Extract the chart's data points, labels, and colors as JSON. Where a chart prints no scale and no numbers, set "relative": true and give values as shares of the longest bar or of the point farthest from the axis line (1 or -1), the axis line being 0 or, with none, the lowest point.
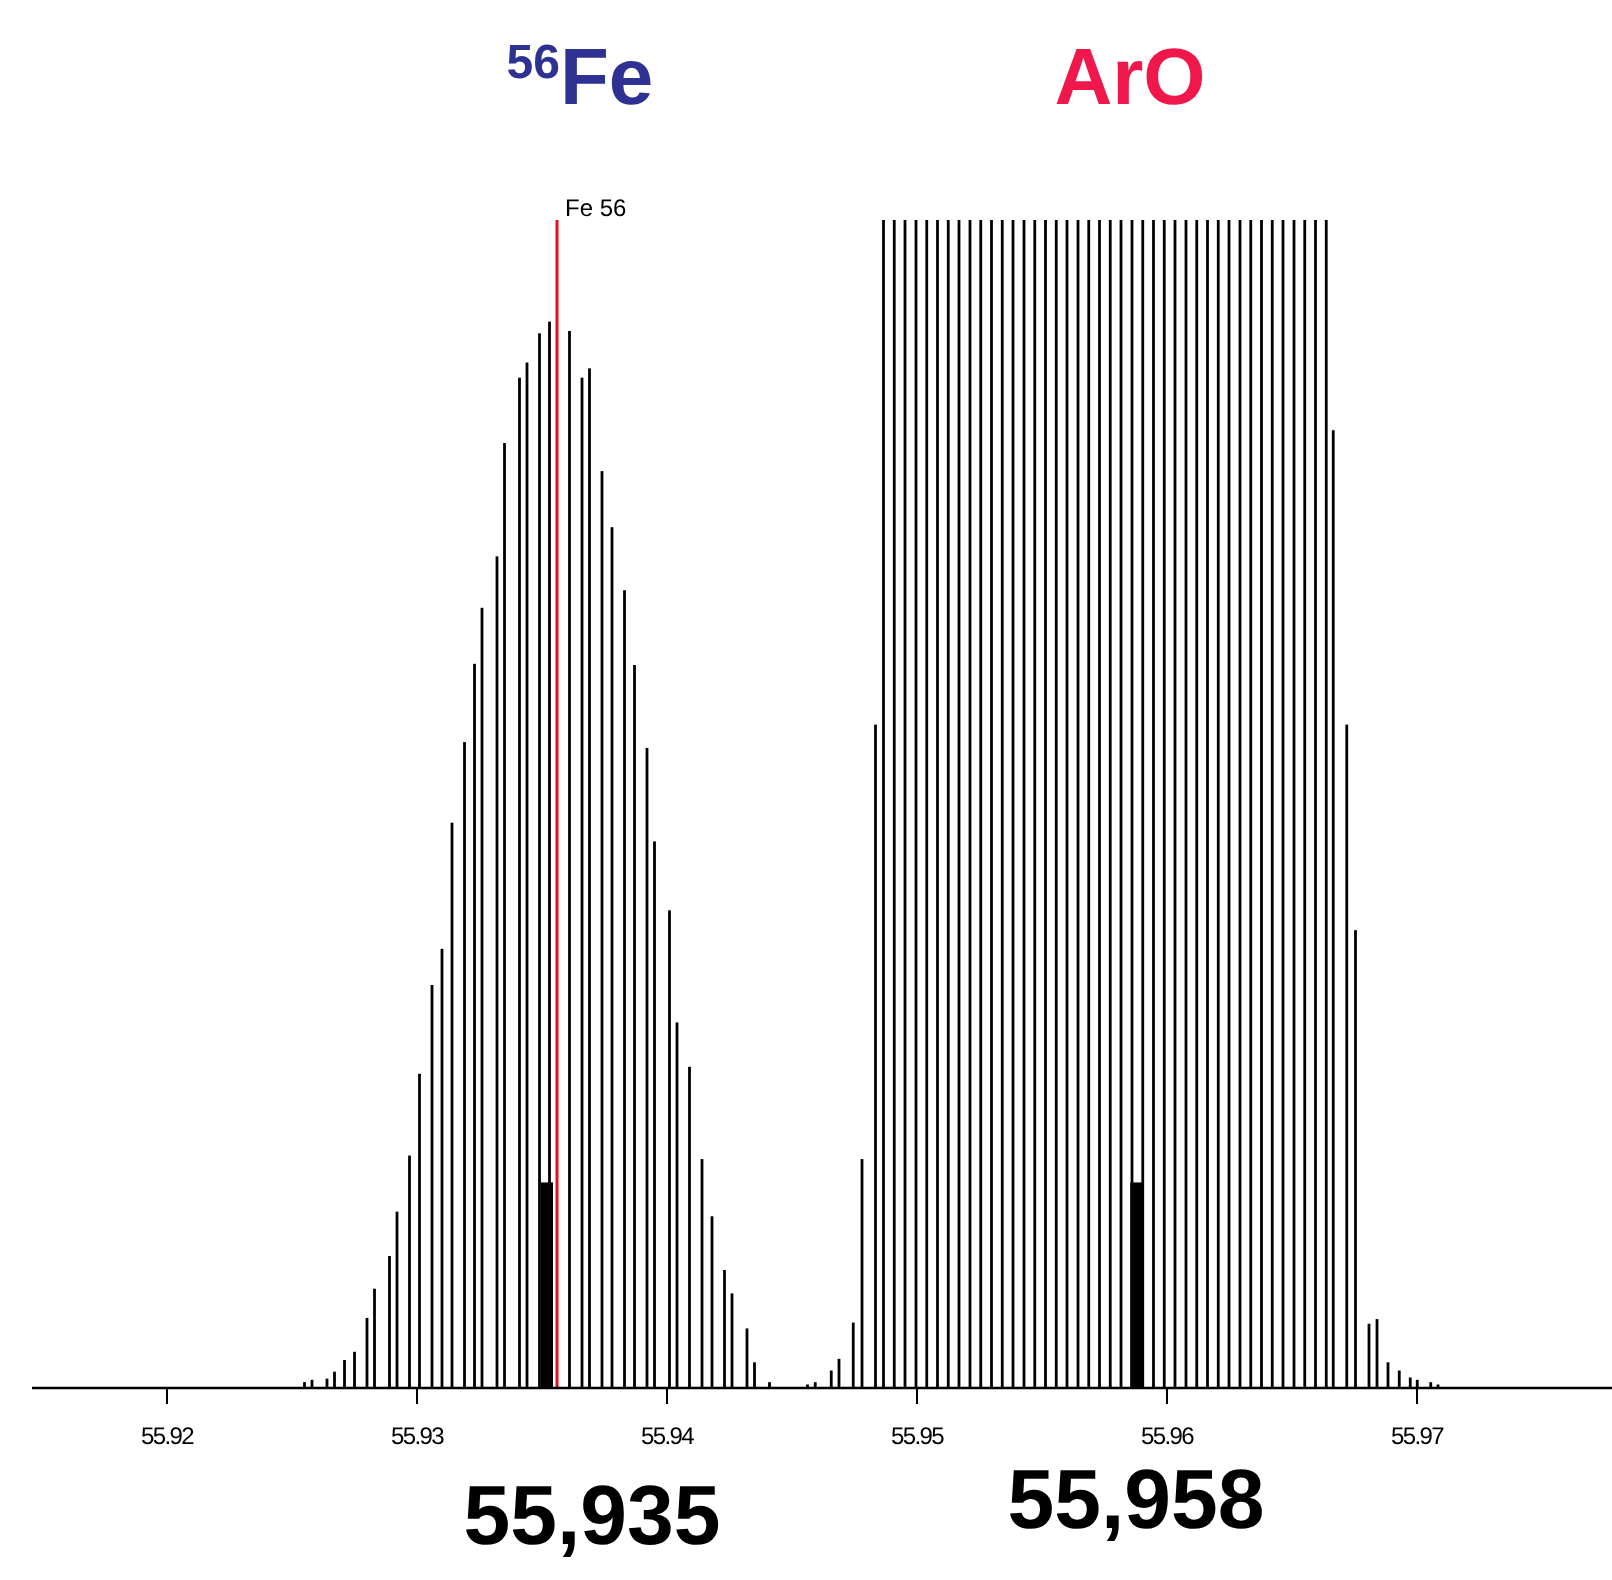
{
  "chart_data": {
    "type": "bar",
    "relative": true,
    "tick_labels": "x",
    "grid": false,
    "xlim": [
      55.9146,
      55.9778
    ],
    "xticks": [
      55.92,
      55.93,
      55.94,
      55.95,
      55.96,
      55.97
    ],
    "series": [
      {
        "color": "#000000",
        "x": [
          55.9255,
          55.9258,
          55.9264,
          55.9267,
          55.9271,
          55.9275,
          55.928,
          55.9283,
          55.9289,
          55.9292,
          55.9297,
          55.9301,
          55.9306,
          55.931,
          55.9314,
          55.9319,
          55.9323,
          55.9326,
          55.9332,
          55.9335,
          55.9341,
          55.9344,
          55.9349,
          55.9353,
          55.9361,
          55.9366,
          55.9369,
          55.9374,
          55.9378,
          55.9383,
          55.9387,
          55.9392,
          55.9395,
          55.9401,
          55.9404,
          55.9409,
          55.9414,
          55.9418,
          55.9423,
          55.9426,
          55.9432,
          55.9435,
          55.9441,
          55.94562,
          55.94593,
          55.94657,
          55.94688,
          55.94745,
          55.9478,
          55.94834,
          55.94866,
          55.94909,
          55.94952,
          55.94996,
          55.95039,
          55.95082,
          55.95125,
          55.95168,
          55.95212,
          55.95255,
          55.95298,
          55.95341,
          55.95384,
          55.95428,
          55.95471,
          55.95514,
          55.95557,
          55.956,
          55.95644,
          55.95687,
          55.9573,
          55.95773,
          55.95816,
          55.9586,
          55.95903,
          55.95946,
          55.95989,
          55.96032,
          55.96076,
          55.96119,
          55.96162,
          55.96205,
          55.96248,
          55.96292,
          55.96335,
          55.96378,
          55.96421,
          55.96464,
          55.96508,
          55.96551,
          55.96594,
          55.96637,
          55.96665,
          55.96719,
          55.96754,
          55.96808,
          55.9684,
          55.96884,
          55.96929,
          55.96973,
          55.97001,
          55.97055,
          55.97084
        ],
        "values": [
          0.005,
          0.007,
          0.008,
          0.014,
          0.024,
          0.031,
          0.06,
          0.085,
          0.113,
          0.151,
          0.199,
          0.269,
          0.345,
          0.376,
          0.484,
          0.553,
          0.62,
          0.668,
          0.712,
          0.809,
          0.865,
          0.878,
          0.903,
          0.913,
          0.905,
          0.865,
          0.873,
          0.785,
          0.737,
          0.683,
          0.619,
          0.548,
          0.468,
          0.409,
          0.313,
          0.275,
          0.196,
          0.147,
          0.101,
          0.081,
          0.051,
          0.022,
          0.005,
          0.003,
          0.005,
          0.015,
          0.025,
          0.056,
          0.196,
          0.568,
          1,
          1,
          1,
          1,
          1,
          1,
          1,
          1,
          1,
          1,
          1,
          1,
          1,
          1,
          1,
          1,
          1,
          1,
          1,
          1,
          1,
          1,
          1,
          1,
          1,
          1,
          1,
          1,
          1,
          1,
          1,
          1,
          1,
          1,
          1,
          1,
          1,
          1,
          1,
          1,
          1,
          1,
          0.82,
          0.568,
          0.392,
          0.055,
          0.059,
          0.022,
          0.015,
          0.009,
          0.007,
          0.005,
          0.003
        ]
      },
      {
        "color": "#000000",
        "x": [
          55.9352,
          55.95877
        ],
        "values": [
          0.176,
          0.176
        ]
      }
    ],
    "ref_lines": [
      {
        "axis": "x",
        "value": 55.9356,
        "label": "Fe 56",
        "color": "#e8101e"
      }
    ],
    "annotations": [
      "$^{56}$Fe",
      "ArO",
      "55,935",
      "55,958"
    ]
  }
}
